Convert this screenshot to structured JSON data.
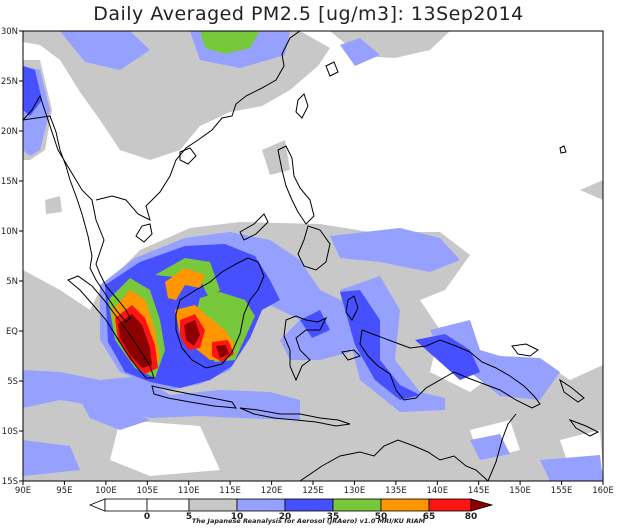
{
  "title": "Daily Averaged PM2.5 [ug/m3]: 13Sep2014",
  "lon_ticks": [
    "90E",
    "95E",
    "100E",
    "105E",
    "110E",
    "115E",
    "120E",
    "125E",
    "130E",
    "135E",
    "140E",
    "145E",
    "150E",
    "155E",
    "160E"
  ],
  "lat_ticks": [
    "30N",
    "25N",
    "20N",
    "15N",
    "10N",
    "5N",
    "EQ",
    "5S",
    "10S",
    "15S"
  ],
  "colorbar": {
    "levels": [
      "0",
      "5",
      "10",
      "20",
      "35",
      "50",
      "65",
      "80"
    ],
    "colors": [
      "#ffffff",
      "#ffffff",
      "#c8c8c8",
      "#96a0ff",
      "#4650ff",
      "#78c83c",
      "#ff9600",
      "#ff1414",
      "#8c0000"
    ]
  },
  "credit": "The Japanese Reanalysis for Aerosol (JRAero) v1.0  MRI/KU  RIAM",
  "colors": {
    "c10": "#c8c8c8",
    "c20": "#96a0ff",
    "c35": "#4650ff",
    "c50": "#78c83c",
    "c65": "#ff9600",
    "c80": "#ff1414",
    "c80p": "#8c0000"
  }
}
